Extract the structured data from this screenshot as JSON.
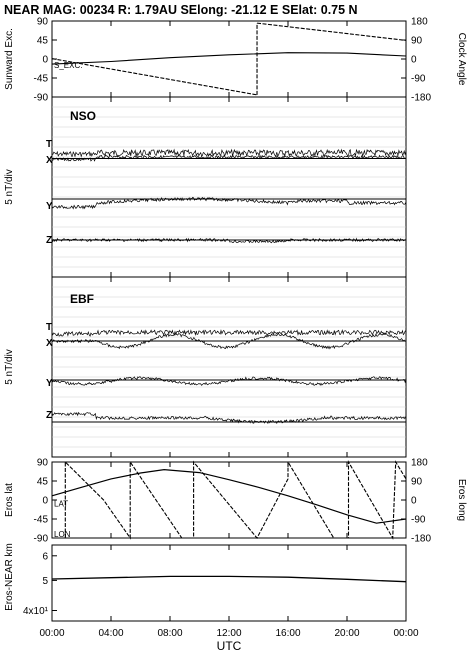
{
  "header": {
    "title": "NEAR MAG: 00234  R: 1.79AU  SElong:  -21.12 E  SElat:    0.75 N"
  },
  "x_axis": {
    "label": "UTC",
    "ticks": [
      "00:00",
      "04:00",
      "08:00",
      "12:00",
      "16:00",
      "20:00",
      "00:00"
    ]
  },
  "chart_data": [
    {
      "type": "line",
      "panel": "sunward-exc-clock-angle",
      "ylabel": "Sunward Exc.",
      "y2label": "Clock Angle",
      "ylim": [
        -90,
        90
      ],
      "y2lim": [
        -180,
        180
      ],
      "yticks": [
        "90",
        "45",
        "0",
        "-45",
        "-90"
      ],
      "y2ticks": [
        "180",
        "90",
        "0",
        "-90",
        "-180"
      ],
      "annotations": [
        "S_EXC."
      ],
      "series": [
        {
          "x_hours": [
            0,
            4,
            8,
            12,
            16,
            20,
            24
          ],
          "y": [
            -12,
            -6,
            3,
            10,
            15,
            14,
            7
          ]
        },
        {
          "x_hours": [
            0,
            13.9,
            13.9,
            24
          ],
          "y": [
            2,
            -170,
            170,
            88
          ]
        }
      ]
    },
    {
      "type": "line",
      "panel": "NSO",
      "title": "NSO",
      "ylabel": "5 nT/div",
      "series": [
        {
          "name": "T"
        },
        {
          "name": "X"
        },
        {
          "name": "Y"
        },
        {
          "name": "Z"
        }
      ]
    },
    {
      "type": "line",
      "panel": "EBF",
      "title": "EBF",
      "ylabel": "5 nT/div",
      "series": [
        {
          "name": "T"
        },
        {
          "name": "X"
        },
        {
          "name": "Y"
        },
        {
          "name": "Z"
        }
      ]
    },
    {
      "type": "line",
      "panel": "eros-lat-long",
      "ylabel": "Eros lat",
      "y2label": "Eros long",
      "ylim": [
        -90,
        90
      ],
      "y2lim": [
        -180,
        180
      ],
      "yticks": [
        "90",
        "45",
        "0",
        "-45",
        "-90"
      ],
      "y2ticks": [
        "180",
        "90",
        "0",
        "-90",
        "-180"
      ],
      "annotations": [
        "LAT",
        "LON"
      ],
      "series": [
        {
          "name": "LAT",
          "x_hours": [
            0,
            2,
            4,
            6,
            7.6,
            10,
            12,
            14,
            16,
            18,
            20,
            22,
            24
          ],
          "y": [
            10,
            30,
            50,
            64,
            72,
            65,
            48,
            30,
            10,
            -12,
            -35,
            -55,
            -45
          ]
        },
        {
          "name": "LON",
          "x_hours": [
            0.9,
            0.9,
            3.5,
            5.3,
            5.3,
            8.8,
            9.6,
            9.6,
            13.9,
            16.0,
            16.0,
            19.1,
            20.1,
            20.1,
            23.1,
            23.3,
            23.3,
            24
          ],
          "y": [
            -180,
            180,
            0,
            -180,
            180,
            -180,
            -180,
            180,
            -180,
            100,
            180,
            -180,
            -180,
            180,
            -180,
            180,
            180,
            100
          ]
        }
      ]
    },
    {
      "type": "line",
      "panel": "eros-near-km",
      "ylabel": "Eros-NEAR km",
      "yscale": "log",
      "yticks": [
        "6",
        "5",
        "4x10¹"
      ],
      "series": [
        {
          "x_hours": [
            0,
            4,
            8,
            12,
            16,
            20,
            24
          ],
          "y": [
            50.5,
            51.0,
            51.5,
            51.5,
            51.2,
            50.4,
            49.5
          ]
        }
      ]
    }
  ]
}
